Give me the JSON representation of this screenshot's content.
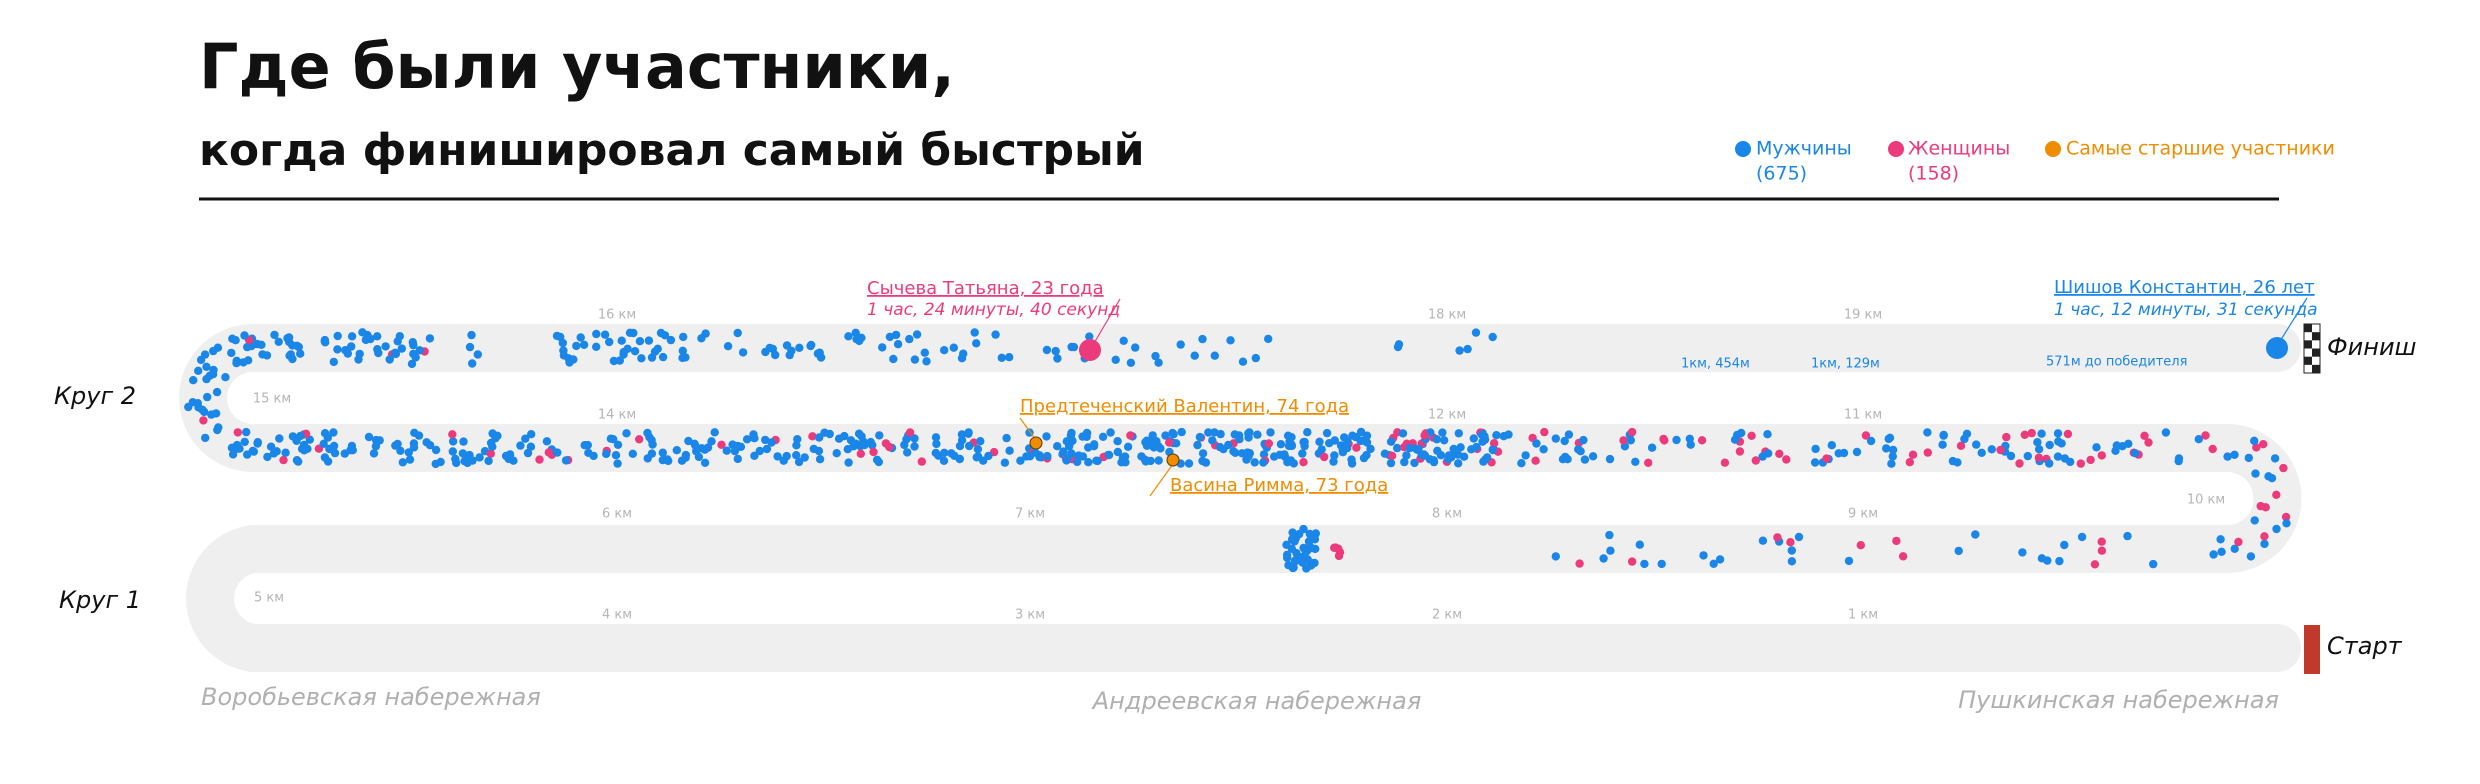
{
  "header": {
    "title": "Где были участники,",
    "subtitle": "когда финишировал самый быстрый"
  },
  "legend": [
    {
      "label": "Мужчины",
      "count": "(675)",
      "color": "#1a86e8"
    },
    {
      "label": "Женщины",
      "count": "(158)",
      "color": "#ec3b7c"
    },
    {
      "label": "Самые старшие участники",
      "color": "#f08c00"
    }
  ],
  "laps": [
    "Круг 2",
    "Круг 1"
  ],
  "finish": "Финиш",
  "start": "Старт",
  "km_markers": [
    "1 км",
    "2 км",
    "3 км",
    "4 км",
    "5 км",
    "6 км",
    "7 км",
    "8 км",
    "9 км",
    "10 км",
    "11 км",
    "12 км",
    "14 км",
    "15 км",
    "16 км",
    "18 км",
    "19 км"
  ],
  "gaps": [
    "1км, 454м",
    "1км, 129м",
    "571м до победителя"
  ],
  "annotations": [
    {
      "name": "Сычева Татьяна, 23 года",
      "time": "1 час, 24 минуты, 40 секунд"
    },
    {
      "name": "Шишов Константин, 26 лет",
      "time": "1 час, 12 минуты, 31 секунда"
    },
    {
      "name": "Предтеченский Валентин, 74 года"
    },
    {
      "name": "Васина Римма, 73 года"
    }
  ],
  "streets": [
    "Воробьевская набережная",
    "Андреевская набережная",
    "Пушкинская набережная"
  ]
}
